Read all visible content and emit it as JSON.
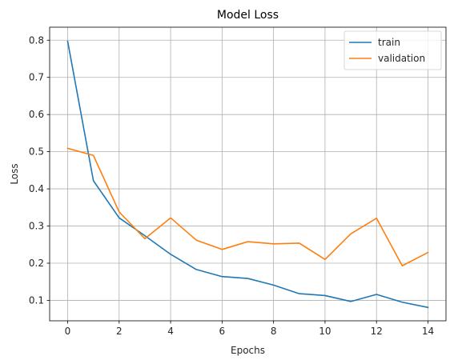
{
  "chart_data": {
    "type": "line",
    "title": "Model Loss",
    "xlabel": "Epochs",
    "ylabel": "Loss",
    "x": [
      0,
      1,
      2,
      3,
      4,
      5,
      6,
      7,
      8,
      9,
      10,
      11,
      12,
      13,
      14
    ],
    "xlim": [
      -0.7,
      14.7
    ],
    "ylim": [
      0.045,
      0.835
    ],
    "xticks": [
      0,
      2,
      4,
      6,
      8,
      10,
      12,
      14
    ],
    "yticks": [
      0.1,
      0.2,
      0.3,
      0.4,
      0.5,
      0.6,
      0.7,
      0.8
    ],
    "grid": true,
    "legend_position": "top-right",
    "series": [
      {
        "name": "train",
        "color": "#1f77b4",
        "values": [
          0.797,
          0.422,
          0.322,
          0.274,
          0.224,
          0.183,
          0.164,
          0.159,
          0.141,
          0.118,
          0.113,
          0.097,
          0.116,
          0.095,
          0.081
        ]
      },
      {
        "name": "validation",
        "color": "#ff7f0e",
        "values": [
          0.509,
          0.49,
          0.338,
          0.266,
          0.322,
          0.262,
          0.237,
          0.258,
          0.252,
          0.254,
          0.21,
          0.279,
          0.321,
          0.193,
          0.229
        ]
      }
    ]
  }
}
